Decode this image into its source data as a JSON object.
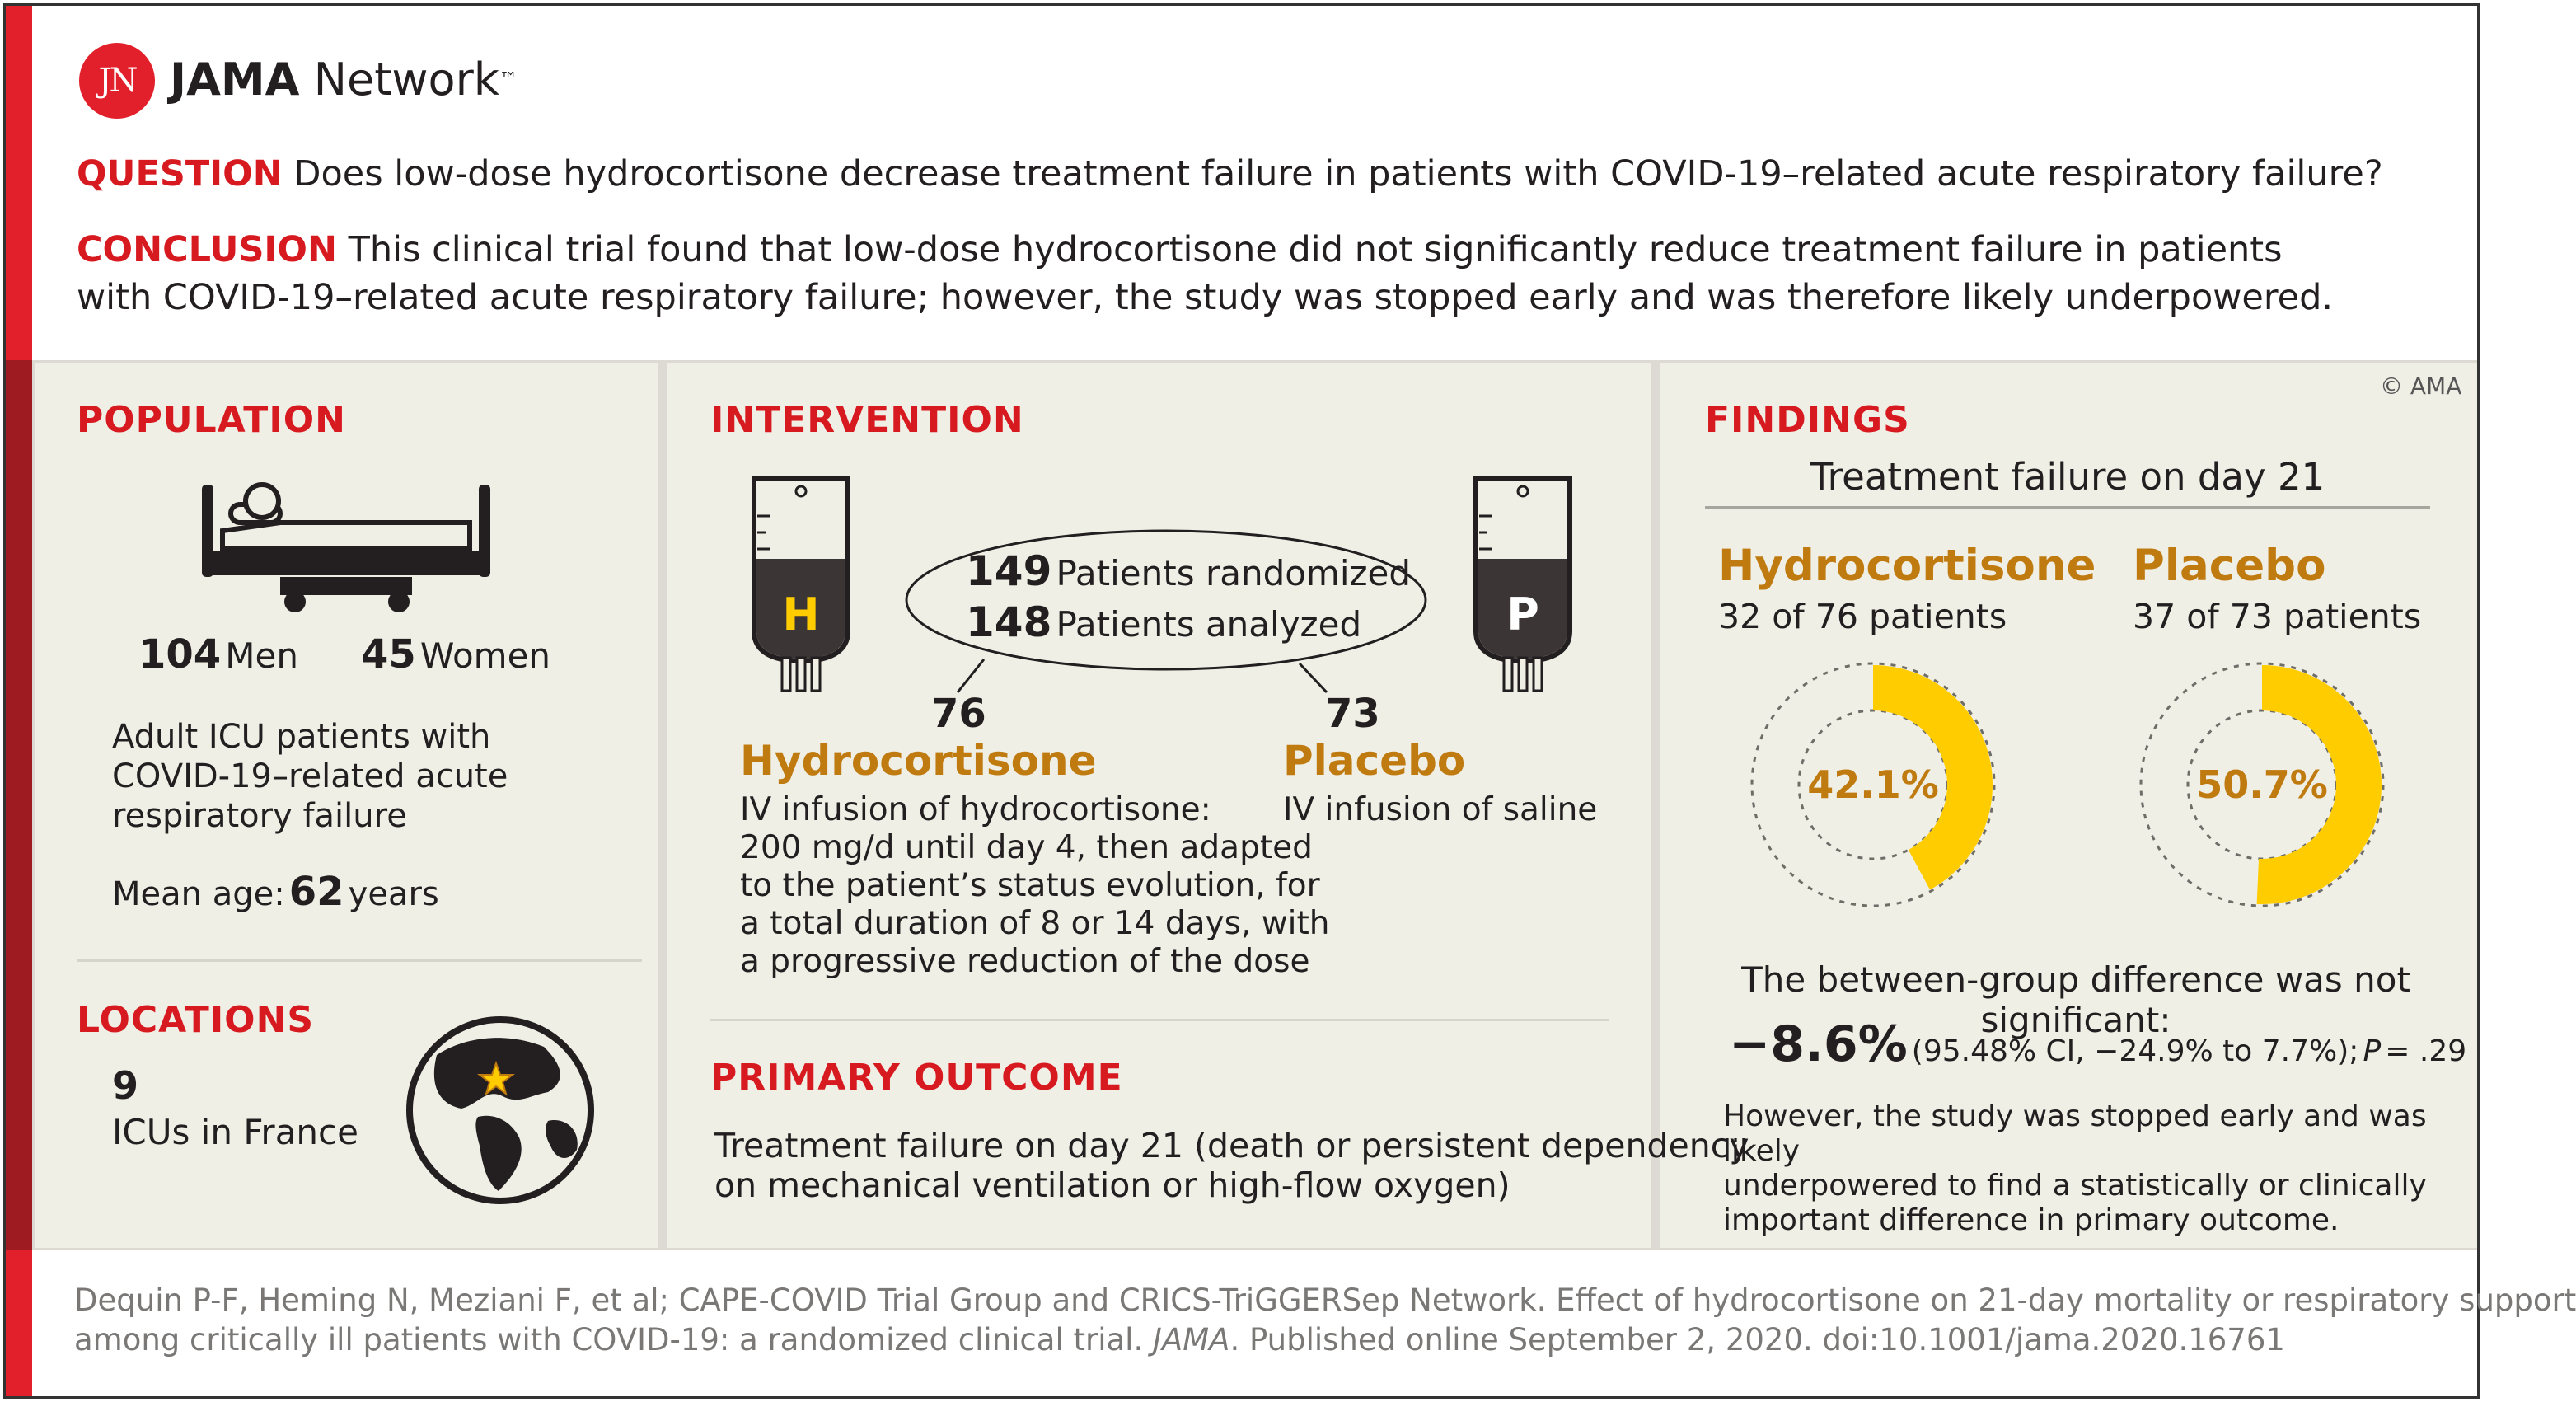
{
  "brand": {
    "logo_letters": "JN",
    "name_bold": "JAMA",
    "name_regular": "Network",
    "tm": "™"
  },
  "question": {
    "label": "QUESTION",
    "text": "Does low-dose hydrocortisone decrease treatment failure in patients with COVID-19–related acute respiratory failure?"
  },
  "conclusion": {
    "label": "CONCLUSION",
    "line1": "This clinical trial found that low-dose hydrocortisone did not significantly reduce treatment failure in patients",
    "line2": "with COVID-19–related acute respiratory failure; however, the study was stopped early and was therefore likely underpowered."
  },
  "population": {
    "header": "POPULATION",
    "men_count": "104",
    "men_label": "Men",
    "women_count": "45",
    "women_label": "Women",
    "desc_lines": [
      "Adult ICU patients with",
      "COVID-19–related acute",
      "respiratory failure"
    ],
    "age_label": "Mean age:",
    "age_value": "62",
    "age_unit": "years"
  },
  "locations": {
    "header": "LOCATIONS",
    "count": "9",
    "label": "ICUs in France"
  },
  "intervention": {
    "header": "INTERVENTION",
    "bag_h_letter": "H",
    "bag_p_letter": "P",
    "randomized_num": "149",
    "randomized_label": "Patients randomized",
    "analyzed_num": "148",
    "analyzed_label": "Patients analyzed",
    "hydro_count": "76",
    "hydro_name": "Hydrocortisone",
    "hydro_desc": [
      "IV infusion of hydrocortisone:",
      "200 mg/d until day 4, then adapted",
      "to the patient’s status evolution, for",
      "a total duration of 8 or 14 days, with",
      "a progressive reduction of the dose"
    ],
    "placebo_count": "73",
    "placebo_name": "Placebo",
    "placebo_desc": "IV infusion of saline"
  },
  "primary_outcome": {
    "header": "PRIMARY OUTCOME",
    "lines": [
      "Treatment failure on day 21 (death or persistent dependency",
      "on mechanical ventilation or high-flow oxygen)"
    ]
  },
  "findings": {
    "copyright": "© AMA",
    "header": "FINDINGS",
    "subtitle": "Treatment failure on day 21",
    "hydro_name": "Hydrocortisone",
    "hydro_detail": "32 of 76 patients",
    "hydro_pct": "42.1%",
    "hydro_fraction": 0.421,
    "placebo_name": "Placebo",
    "placebo_detail": "37 of 73 patients",
    "placebo_pct": "50.7%",
    "placebo_fraction": 0.507,
    "diff_intro": "The between-group difference was not significant:",
    "diff_value": "−8.6%",
    "diff_ci_pre": "(95.48% CI, −24.9% to 7.7%);",
    "diff_p_label": "P",
    "diff_p_value": "= .29",
    "note_lines": [
      "However, the study was stopped early and was likely",
      "underpowered to find a statistically or clinically",
      "important difference in primary outcome."
    ]
  },
  "citation": {
    "line1": "Dequin P-F, Heming N, Meziani F, et al; CAPE-COVID Trial Group and CRICS-TriGGERSep Network. Effect of hydrocortisone on 21-day mortality or respiratory support",
    "line2_pre": "among critically ill patients with COVID-19: a randomized clinical trial.",
    "journal": "JAMA",
    "line2_post": ". Published online September 2, 2020. doi:10.1001/jama.2020.16761"
  },
  "colors": {
    "red": "#d71920",
    "dark_red": "#9e1b22",
    "gold": "#c07b10",
    "donut_fill": "#ffcc00",
    "panel_bg": "#f0efe6"
  }
}
